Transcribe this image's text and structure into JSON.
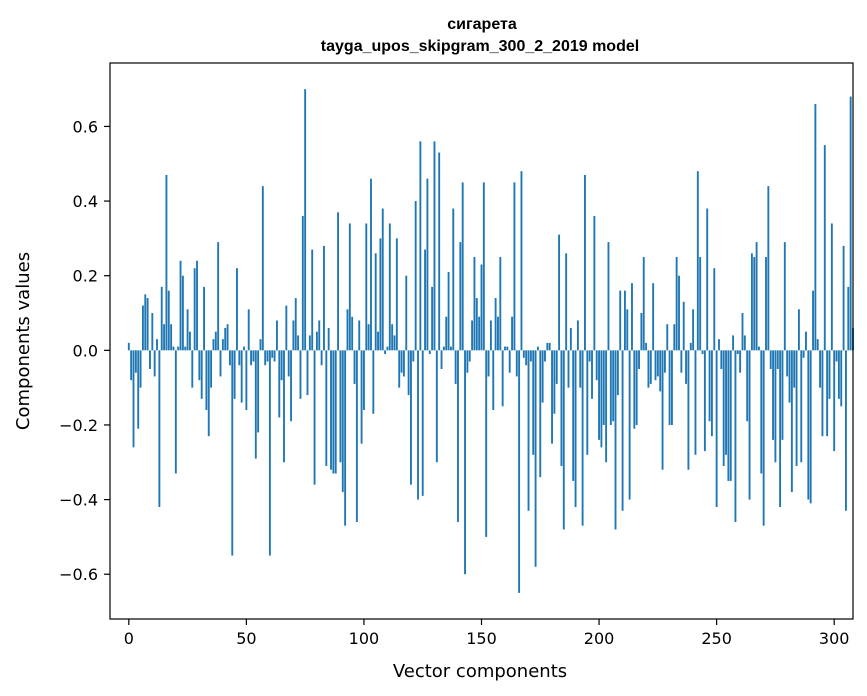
{
  "chart_data": {
    "type": "bar",
    "title": "сигарета",
    "subtitle": "tayga_upos_skipgram_300_2_2019 model",
    "xlabel": "Vector components",
    "ylabel": "Components values",
    "xlim": [
      -8,
      308
    ],
    "ylim": [
      -0.72,
      0.77
    ],
    "xticks": [
      0,
      50,
      100,
      150,
      200,
      250,
      300
    ],
    "xtick_labels": [
      "0",
      "50",
      "100",
      "150",
      "200",
      "250",
      "300"
    ],
    "yticks": [
      -0.6,
      -0.4,
      -0.2,
      0.0,
      0.2,
      0.4,
      0.6
    ],
    "ytick_labels": [
      "−0.6",
      "−0.4",
      "−0.2",
      "0.0",
      "0.2",
      "0.4",
      "0.6"
    ],
    "bar_color": "#1f77b4",
    "grid": false,
    "values": [
      0.02,
      -0.08,
      -0.26,
      -0.06,
      -0.21,
      -0.1,
      0.12,
      0.15,
      0.14,
      -0.05,
      0.1,
      -0.07,
      0.03,
      -0.42,
      0.17,
      0.07,
      0.47,
      0.16,
      0.07,
      0.01,
      -0.33,
      0.01,
      0.24,
      0.2,
      0.01,
      0.11,
      0.05,
      -0.1,
      0.22,
      0.24,
      -0.08,
      -0.13,
      0.17,
      -0.16,
      -0.23,
      -0.1,
      0.03,
      0.05,
      0.29,
      -0.07,
      0.03,
      0.06,
      0.07,
      -0.04,
      -0.55,
      -0.13,
      0.22,
      -0.04,
      -0.14,
      0.01,
      -0.16,
      0.11,
      -0.04,
      -0.03,
      -0.29,
      -0.22,
      0.03,
      0.44,
      -0.04,
      -0.03,
      -0.55,
      -0.02,
      -0.03,
      0.08,
      -0.18,
      -0.08,
      -0.3,
      0.12,
      -0.07,
      -0.19,
      0.08,
      0.14,
      0.04,
      -0.13,
      0.36,
      0.7,
      -0.12,
      0.04,
      0.27,
      -0.36,
      0.05,
      0.08,
      -0.04,
      0.28,
      -0.31,
      0.06,
      -0.32,
      -0.33,
      -0.33,
      0.37,
      -0.3,
      -0.38,
      -0.47,
      0.11,
      0.34,
      0.09,
      -0.09,
      -0.46,
      0.08,
      -0.25,
      -0.16,
      0.34,
      0.07,
      0.46,
      -0.17,
      0.26,
      0.05,
      0.3,
      0.38,
      -0.01,
      0.01,
      0.34,
      0.07,
      0.04,
      0.3,
      -0.1,
      -0.06,
      -0.07,
      0.2,
      -0.12,
      -0.36,
      -0.03,
      0.4,
      -0.4,
      0.56,
      -0.39,
      0.27,
      0.46,
      -0.01,
      0.17,
      0.56,
      -0.3,
      0.53,
      -0.05,
      0.01,
      0.09,
      0.21,
      0.01,
      0.38,
      -0.09,
      -0.46,
      0.29,
      0.45,
      -0.6,
      -0.06,
      -0.03,
      0.08,
      0.25,
      0.14,
      0.09,
      0.23,
      0.45,
      -0.5,
      -0.07,
      0.08,
      -0.16,
      0.14,
      0.09,
      0.25,
      -0.15,
      0.01,
      0.01,
      -0.06,
      0.09,
      0.45,
      -0.07,
      -0.65,
      0.48,
      -0.02,
      -0.04,
      -0.43,
      -0.03,
      -0.28,
      -0.58,
      0.01,
      -0.34,
      -0.14,
      -0.03,
      0.02,
      0.02,
      -0.25,
      -0.17,
      -0.09,
      0.31,
      -0.31,
      -0.48,
      0.26,
      -0.1,
      0.06,
      -0.35,
      -0.42,
      0.08,
      -0.1,
      -0.47,
      0.47,
      -0.28,
      -0.03,
      -0.13,
      0.36,
      -0.08,
      -0.24,
      -0.26,
      -0.2,
      -0.3,
      0.29,
      -0.2,
      -0.19,
      -0.48,
      -0.12,
      0.16,
      -0.43,
      0.16,
      0.11,
      -0.4,
      0.18,
      -0.21,
      -0.2,
      -0.05,
      0.1,
      0.25,
      0.02,
      -0.1,
      -0.09,
      0.18,
      -0.08,
      -0.07,
      -0.11,
      -0.32,
      -0.06,
      0.07,
      -0.2,
      -0.2,
      0.07,
      0.25,
      0.2,
      -0.06,
      0.13,
      -0.09,
      -0.32,
      0.02,
      0.11,
      -0.28,
      0.48,
      0.25,
      -0.01,
      -0.27,
      0.38,
      -0.19,
      -0.23,
      0.22,
      -0.42,
      0.03,
      -0.05,
      -0.31,
      -0.28,
      -0.35,
      -0.35,
      0.04,
      -0.46,
      -0.01,
      -0.06,
      0.1,
      0.04,
      -0.19,
      -0.4,
      0.26,
      0.25,
      0.29,
      0.01,
      -0.33,
      -0.47,
      0.25,
      0.44,
      -0.05,
      -0.24,
      -0.3,
      -0.05,
      -0.42,
      -0.24,
      0.29,
      -0.07,
      -0.14,
      -0.38,
      -0.1,
      -0.31,
      0.11,
      -0.3,
      -0.02,
      0.05,
      -0.4,
      -0.41,
      0.16,
      0.66,
      0.03,
      -0.1,
      -0.23,
      0.55,
      -0.23,
      -0.13,
      0.34,
      -0.27,
      -0.03,
      -0.13,
      -0.15,
      0.28,
      -0.43,
      0.17,
      0.68,
      0.06
    ]
  }
}
